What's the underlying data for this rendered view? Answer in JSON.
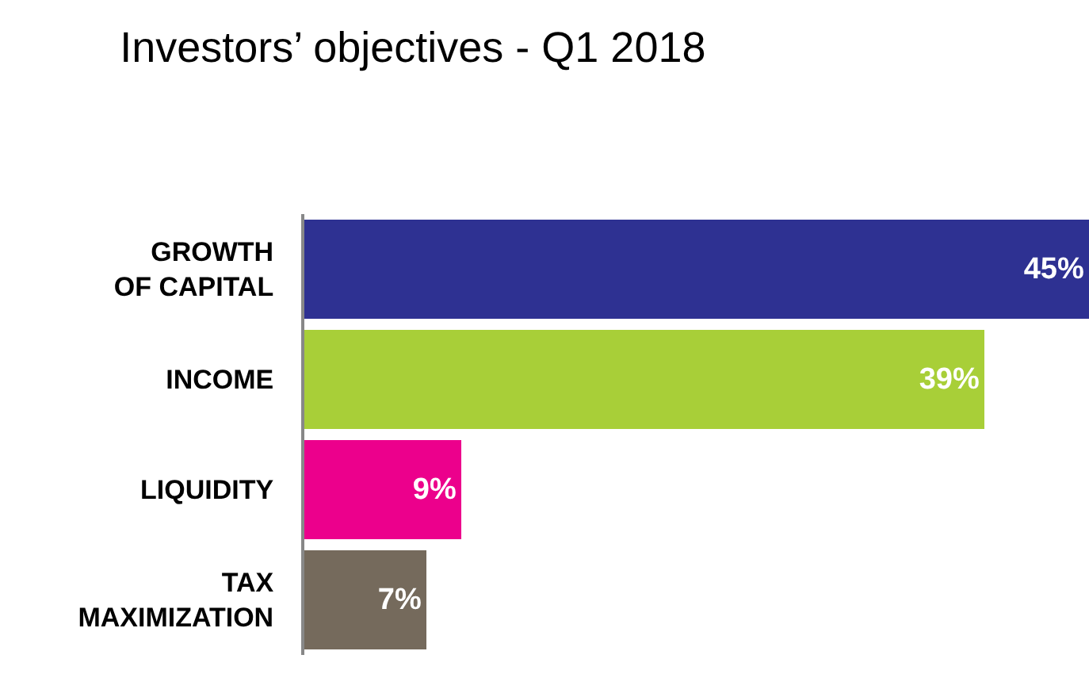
{
  "chart_data": {
    "type": "bar",
    "orientation": "horizontal",
    "title": "Investors’ objectives - Q1 2018",
    "categories": [
      "GROWTH\nOF CAPITAL",
      "INCOME",
      "LIQUIDITY",
      "TAX\nMAXIMIZATION"
    ],
    "values": [
      45,
      39,
      9,
      7
    ],
    "colors": [
      "#2e3192",
      "#a8cf38",
      "#ec008c",
      "#756a5c"
    ],
    "value_labels": [
      "45%",
      "39%",
      "9%",
      "7%"
    ],
    "xlim": [
      0,
      45
    ],
    "tick_labels": "y",
    "legend": false
  }
}
